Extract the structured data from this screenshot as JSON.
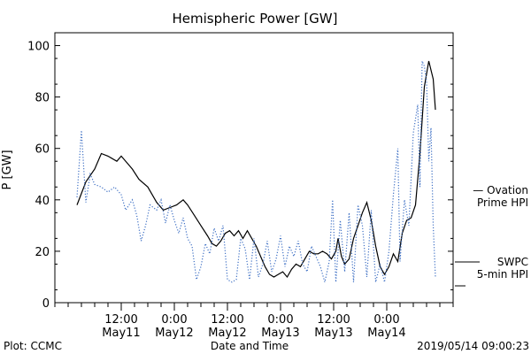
{
  "chart_data": {
    "type": "line",
    "title": "Hemispheric Power [GW]",
    "ylabel": "P [GW]",
    "xlabel": "Date and Time",
    "ylim": [
      0,
      105
    ],
    "yticks": [
      0,
      20,
      40,
      60,
      80,
      100
    ],
    "xlim": [
      "2019-05-10 21:00",
      "2019-05-14 15:00"
    ],
    "xticks": [
      {
        "top": "12:00",
        "bottom": "May11",
        "t": "2019-05-11 12:00"
      },
      {
        "top": "0:00",
        "bottom": "May12",
        "t": "2019-05-12 00:00"
      },
      {
        "top": "12:00",
        "bottom": "May12",
        "t": "2019-05-12 12:00"
      },
      {
        "top": "0:00",
        "bottom": "May13",
        "t": "2019-05-13 00:00"
      },
      {
        "top": "12:00",
        "bottom": "May13",
        "t": "2019-05-13 12:00"
      },
      {
        "top": "0:00",
        "bottom": "May14",
        "t": "2019-05-14 00:00"
      }
    ],
    "minor_tick_hours": 3,
    "series": [
      {
        "name": "SWPC",
        "style": "solid",
        "color": "#000000",
        "points": [
          [
            "2019-05-11 02:00",
            38
          ],
          [
            "2019-05-11 04:00",
            47
          ],
          [
            "2019-05-11 06:00",
            52
          ],
          [
            "2019-05-11 07:30",
            58
          ],
          [
            "2019-05-11 09:00",
            57
          ],
          [
            "2019-05-11 11:00",
            55
          ],
          [
            "2019-05-11 12:00",
            57
          ],
          [
            "2019-05-11 13:30",
            54
          ],
          [
            "2019-05-11 14:30",
            52
          ],
          [
            "2019-05-11 16:00",
            48
          ],
          [
            "2019-05-11 18:00",
            45
          ],
          [
            "2019-05-11 20:00",
            39
          ],
          [
            "2019-05-11 21:30",
            36
          ],
          [
            "2019-05-11 23:00",
            37
          ],
          [
            "2019-05-12 00:30",
            38
          ],
          [
            "2019-05-12 02:00",
            40
          ],
          [
            "2019-05-12 03:00",
            38
          ],
          [
            "2019-05-12 04:30",
            34
          ],
          [
            "2019-05-12 06:00",
            30
          ],
          [
            "2019-05-12 07:30",
            26
          ],
          [
            "2019-05-12 08:30",
            23
          ],
          [
            "2019-05-12 09:30",
            22
          ],
          [
            "2019-05-12 10:30",
            24
          ],
          [
            "2019-05-12 11:30",
            27
          ],
          [
            "2019-05-12 12:30",
            28
          ],
          [
            "2019-05-12 13:30",
            26
          ],
          [
            "2019-05-12 14:30",
            28
          ],
          [
            "2019-05-12 15:30",
            25
          ],
          [
            "2019-05-12 16:30",
            28
          ],
          [
            "2019-05-12 17:30",
            25
          ],
          [
            "2019-05-12 18:30",
            22
          ],
          [
            "2019-05-12 19:30",
            18
          ],
          [
            "2019-05-12 20:30",
            14
          ],
          [
            "2019-05-12 21:30",
            11
          ],
          [
            "2019-05-12 22:30",
            10
          ],
          [
            "2019-05-12 23:30",
            11
          ],
          [
            "2019-05-13 00:30",
            12
          ],
          [
            "2019-05-13 01:30",
            10
          ],
          [
            "2019-05-13 02:30",
            13
          ],
          [
            "2019-05-13 03:30",
            15
          ],
          [
            "2019-05-13 04:30",
            14
          ],
          [
            "2019-05-13 05:30",
            17
          ],
          [
            "2019-05-13 06:30",
            20
          ],
          [
            "2019-05-13 07:30",
            19
          ],
          [
            "2019-05-13 08:30",
            19
          ],
          [
            "2019-05-13 09:30",
            20
          ],
          [
            "2019-05-13 10:30",
            19
          ],
          [
            "2019-05-13 11:30",
            17
          ],
          [
            "2019-05-13 12:30",
            20
          ],
          [
            "2019-05-13 13:00",
            25
          ],
          [
            "2019-05-13 13:45",
            18
          ],
          [
            "2019-05-13 14:30",
            15
          ],
          [
            "2019-05-13 15:30",
            17
          ],
          [
            "2019-05-13 16:30",
            25
          ],
          [
            "2019-05-13 17:30",
            30
          ],
          [
            "2019-05-13 18:30",
            35
          ],
          [
            "2019-05-13 19:30",
            39
          ],
          [
            "2019-05-13 20:30",
            32
          ],
          [
            "2019-05-13 21:30",
            22
          ],
          [
            "2019-05-13 22:30",
            14
          ],
          [
            "2019-05-13 23:30",
            11
          ],
          [
            "2019-05-14 00:30",
            14
          ],
          [
            "2019-05-14 01:30",
            19
          ],
          [
            "2019-05-14 02:30",
            16
          ],
          [
            "2019-05-14 03:30",
            27
          ],
          [
            "2019-05-14 04:30",
            32
          ],
          [
            "2019-05-14 05:30",
            33
          ],
          [
            "2019-05-14 06:30",
            38
          ],
          [
            "2019-05-14 07:30",
            58
          ],
          [
            "2019-05-14 08:30",
            84
          ],
          [
            "2019-05-14 09:30",
            94
          ],
          [
            "2019-05-14 10:30",
            87
          ],
          [
            "2019-05-14 11:00",
            75
          ]
        ]
      },
      {
        "name": "Ovation Prime HPI",
        "style": "dotted",
        "color": "#3d6fc4",
        "points": [
          [
            "2019-05-11 02:00",
            41
          ],
          [
            "2019-05-11 03:00",
            67
          ],
          [
            "2019-05-11 04:00",
            39
          ],
          [
            "2019-05-11 05:00",
            50
          ],
          [
            "2019-05-11 06:00",
            46
          ],
          [
            "2019-05-11 07:30",
            45
          ],
          [
            "2019-05-11 09:00",
            43
          ],
          [
            "2019-05-11 10:30",
            45
          ],
          [
            "2019-05-11 12:00",
            42
          ],
          [
            "2019-05-11 13:00",
            36
          ],
          [
            "2019-05-11 14:30",
            40
          ],
          [
            "2019-05-11 15:30",
            34
          ],
          [
            "2019-05-11 16:30",
            24
          ],
          [
            "2019-05-11 17:30",
            30
          ],
          [
            "2019-05-11 18:30",
            38
          ],
          [
            "2019-05-11 20:00",
            36
          ],
          [
            "2019-05-11 21:00",
            40
          ],
          [
            "2019-05-11 22:00",
            31
          ],
          [
            "2019-05-11 23:00",
            38
          ],
          [
            "2019-05-12 00:00",
            32
          ],
          [
            "2019-05-12 01:00",
            27
          ],
          [
            "2019-05-12 02:00",
            33
          ],
          [
            "2019-05-12 03:00",
            25
          ],
          [
            "2019-05-12 04:00",
            22
          ],
          [
            "2019-05-12 05:00",
            9
          ],
          [
            "2019-05-12 06:00",
            14
          ],
          [
            "2019-05-12 07:00",
            23
          ],
          [
            "2019-05-12 08:00",
            19
          ],
          [
            "2019-05-12 09:00",
            29
          ],
          [
            "2019-05-12 10:00",
            24
          ],
          [
            "2019-05-12 11:00",
            30
          ],
          [
            "2019-05-12 12:00",
            9
          ],
          [
            "2019-05-12 13:00",
            8
          ],
          [
            "2019-05-12 14:00",
            9
          ],
          [
            "2019-05-12 15:00",
            25
          ],
          [
            "2019-05-12 16:00",
            21
          ],
          [
            "2019-05-12 17:00",
            9
          ],
          [
            "2019-05-12 18:00",
            25
          ],
          [
            "2019-05-12 19:00",
            10
          ],
          [
            "2019-05-12 20:00",
            15
          ],
          [
            "2019-05-12 21:00",
            24
          ],
          [
            "2019-05-12 22:00",
            12
          ],
          [
            "2019-05-12 23:00",
            17
          ],
          [
            "2019-05-13 00:00",
            26
          ],
          [
            "2019-05-13 01:00",
            14
          ],
          [
            "2019-05-13 02:00",
            22
          ],
          [
            "2019-05-13 03:00",
            18
          ],
          [
            "2019-05-13 04:00",
            24
          ],
          [
            "2019-05-13 05:00",
            15
          ],
          [
            "2019-05-13 06:00",
            12
          ],
          [
            "2019-05-13 07:00",
            22
          ],
          [
            "2019-05-13 08:00",
            18
          ],
          [
            "2019-05-13 09:00",
            14
          ],
          [
            "2019-05-13 10:00",
            8
          ],
          [
            "2019-05-13 11:00",
            16
          ],
          [
            "2019-05-13 11:45",
            40
          ],
          [
            "2019-05-13 12:30",
            8
          ],
          [
            "2019-05-13 13:30",
            32
          ],
          [
            "2019-05-13 14:30",
            12
          ],
          [
            "2019-05-13 15:30",
            35
          ],
          [
            "2019-05-13 16:30",
            8
          ],
          [
            "2019-05-13 17:30",
            38
          ],
          [
            "2019-05-13 18:30",
            30
          ],
          [
            "2019-05-13 19:30",
            10
          ],
          [
            "2019-05-13 20:30",
            36
          ],
          [
            "2019-05-13 21:30",
            8
          ],
          [
            "2019-05-13 22:30",
            15
          ],
          [
            "2019-05-13 23:30",
            8
          ],
          [
            "2019-05-14 00:30",
            20
          ],
          [
            "2019-05-14 01:30",
            42
          ],
          [
            "2019-05-14 02:30",
            60
          ],
          [
            "2019-05-14 03:00",
            16
          ],
          [
            "2019-05-14 04:00",
            40
          ],
          [
            "2019-05-14 05:00",
            30
          ],
          [
            "2019-05-14 06:00",
            66
          ],
          [
            "2019-05-14 07:00",
            77
          ],
          [
            "2019-05-14 07:30",
            45
          ],
          [
            "2019-05-14 08:00",
            94
          ],
          [
            "2019-05-14 08:30",
            92
          ],
          [
            "2019-05-14 09:00",
            86
          ],
          [
            "2019-05-14 09:30",
            55
          ],
          [
            "2019-05-14 10:00",
            68
          ],
          [
            "2019-05-14 10:30",
            30
          ],
          [
            "2019-05-14 11:00",
            10
          ]
        ]
      }
    ],
    "legend": [
      {
        "label_lines": [
          "— Ovation",
          "Prime HPI"
        ],
        "color": "#3d6fc4"
      },
      {
        "label_lines": [
          "SWPC",
          "5-min HPI"
        ],
        "color": "#000000"
      }
    ],
    "legend_placement": "right",
    "grid": false
  },
  "footer": {
    "left": "Plot: CCMC",
    "right": "2019/05/14 09:00:23"
  }
}
